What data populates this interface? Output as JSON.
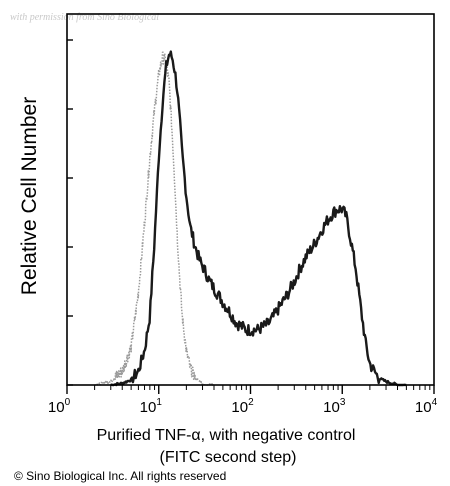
{
  "watermark": "with permission from Sino Biological",
  "copyright": "© Sino Biological Inc. All rights reserved",
  "chart_data": {
    "type": "line",
    "title": "",
    "ylabel": "Relative Cell Number",
    "xlabel_lines": [
      "Purified TNF-α, with negative control",
      "(FITC second step)"
    ],
    "x_scale": "log",
    "xlim": [
      1,
      10000
    ],
    "ylim": [
      0,
      1
    ],
    "x_ticks": [
      {
        "base": "10",
        "exp": "0",
        "value": 1
      },
      {
        "base": "10",
        "exp": "1",
        "value": 10
      },
      {
        "base": "10",
        "exp": "2",
        "value": 100
      },
      {
        "base": "10",
        "exp": "3",
        "value": 1000
      },
      {
        "base": "10",
        "exp": "4",
        "value": 10000
      }
    ],
    "y_ticks": [
      0,
      0.2,
      0.4,
      0.6,
      0.8,
      1.0
    ],
    "y_tick_labels_shown": false,
    "series": [
      {
        "color": "#1a1a1a",
        "style": "solid",
        "x": [
          3,
          4,
          5,
          6,
          7,
          8,
          9,
          10,
          11,
          12,
          13,
          14,
          15,
          16,
          17,
          18,
          20,
          22,
          25,
          28,
          32,
          36,
          40,
          45,
          50,
          60,
          70,
          80,
          90,
          100,
          110,
          120,
          140,
          160,
          180,
          200,
          250,
          300,
          350,
          400,
          500,
          600,
          700,
          800,
          900,
          1000,
          1100,
          1200,
          1400,
          1600,
          1800,
          2000,
          2500,
          3000,
          3500,
          4000,
          5000
        ],
        "y": [
          0.0,
          0.005,
          0.015,
          0.04,
          0.1,
          0.2,
          0.42,
          0.66,
          0.82,
          0.92,
          0.96,
          0.95,
          0.91,
          0.85,
          0.76,
          0.67,
          0.55,
          0.46,
          0.4,
          0.36,
          0.33,
          0.3,
          0.28,
          0.26,
          0.24,
          0.21,
          0.18,
          0.17,
          0.16,
          0.16,
          0.16,
          0.16,
          0.17,
          0.18,
          0.2,
          0.22,
          0.26,
          0.3,
          0.34,
          0.37,
          0.41,
          0.45,
          0.48,
          0.5,
          0.51,
          0.51,
          0.49,
          0.44,
          0.34,
          0.22,
          0.12,
          0.06,
          0.02,
          0.01,
          0.005,
          0.0,
          0.0
        ]
      },
      {
        "color": "#9a9a9a",
        "style": "dotted",
        "x": [
          2,
          3,
          4,
          5,
          6,
          7,
          8,
          9,
          10,
          11,
          12,
          13,
          14,
          15,
          16,
          17,
          18,
          20,
          22,
          25,
          28,
          32,
          40
        ],
        "y": [
          0.0,
          0.01,
          0.04,
          0.11,
          0.27,
          0.47,
          0.66,
          0.8,
          0.9,
          0.95,
          0.94,
          0.87,
          0.73,
          0.58,
          0.42,
          0.3,
          0.2,
          0.1,
          0.05,
          0.02,
          0.01,
          0.0,
          0.0
        ]
      }
    ]
  }
}
